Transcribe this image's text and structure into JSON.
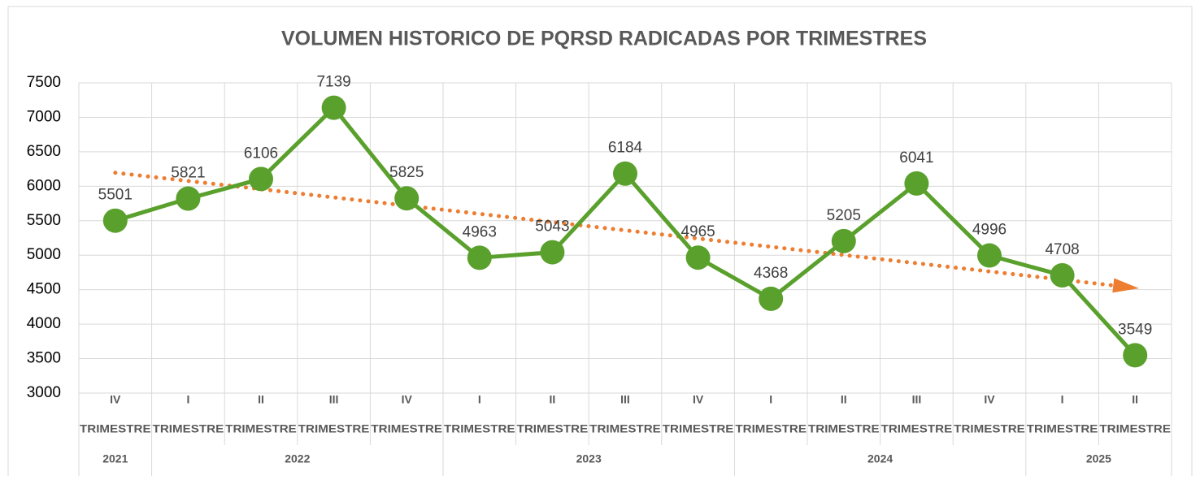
{
  "chart_data": {
    "type": "line",
    "title": "VOLUMEN HISTORICO DE PQRSD RADICADAS POR TRIMESTRES",
    "categories": [
      "IV",
      "I",
      "II",
      "III",
      "IV",
      "I",
      "II",
      "III",
      "IV",
      "I",
      "II",
      "III",
      "IV",
      "I",
      "II"
    ],
    "category_suffix": "TRIMESTRE",
    "groups": [
      {
        "label": "2021",
        "span": 1
      },
      {
        "label": "2022",
        "span": 4
      },
      {
        "label": "2023",
        "span": 4
      },
      {
        "label": "2024",
        "span": 4
      },
      {
        "label": "2025",
        "span": 2
      }
    ],
    "series": [
      {
        "name": "PQRSD",
        "color": "#5aa02c",
        "values": [
          5501,
          5821,
          6106,
          7139,
          5825,
          4963,
          5043,
          6184,
          4965,
          4368,
          5205,
          6041,
          4996,
          4708,
          3549
        ]
      }
    ],
    "trendline": {
      "color": "#ed7d31"
    },
    "ylim": [
      3000,
      7500
    ],
    "yticks": [
      3000,
      3500,
      4000,
      4500,
      5000,
      5500,
      6000,
      6500,
      7000,
      7500
    ],
    "grid": true
  }
}
